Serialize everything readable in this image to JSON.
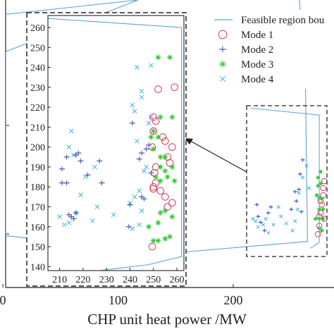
{
  "chart_data": {
    "type": "scatter",
    "xlabel": "CHP unit heat power /MW",
    "main_x_ticks": [
      "0",
      "100",
      "200"
    ],
    "main_x_tick_values": [
      0,
      100,
      200
    ],
    "main_xlim": [
      0,
      285
    ],
    "main_ylim": [
      0,
      100
    ],
    "feasible_region": {
      "name": "Feasible region bou",
      "outline": [
        [
          0,
          95
        ],
        [
          115,
          100
        ],
        [
          0,
          82
        ],
        [
          0,
          18
        ],
        [
          145,
          12
        ],
        [
          262,
          16
        ],
        [
          260,
          78
        ],
        [
          255,
          100
        ]
      ],
      "color": "#5ba3d6"
    },
    "legend": [
      {
        "label": "Feasible region bou",
        "marker": "line",
        "color": "#5ba3d6"
      },
      {
        "label": "Mode 1",
        "marker": "circle",
        "color": "#d94a6a"
      },
      {
        "label": "Mode 2",
        "marker": "dash",
        "color": "#3c4fb0"
      },
      {
        "label": "Mode 3",
        "marker": "asterisk",
        "color": "#33c233"
      },
      {
        "label": "Mode 4",
        "marker": "x",
        "color": "#45b3dc"
      }
    ],
    "inset": {
      "x_ticks": [
        "210",
        "220",
        "230",
        "240",
        "250",
        "260"
      ],
      "x_tick_values": [
        210,
        220,
        230,
        240,
        250,
        260
      ],
      "y_ticks": [
        "140",
        "150",
        "160",
        "170",
        "180",
        "190",
        "200",
        "210",
        "220",
        "230",
        "240",
        "250",
        "260"
      ],
      "y_tick_values": [
        140,
        150,
        160,
        170,
        180,
        190,
        200,
        210,
        220,
        230,
        240,
        250,
        260
      ],
      "xlim": [
        205,
        263
      ],
      "ylim": [
        138,
        266
      ],
      "boundary": [
        [
          205,
          264.5
        ],
        [
          262,
          260
        ],
        [
          262,
          145
        ],
        [
          248,
          141
        ],
        [
          227,
          138
        ]
      ],
      "series": [
        {
          "name": "Mode 1",
          "points": [
            [
              249.5,
              150
            ],
            [
              250,
              180
            ],
            [
              251,
              182
            ],
            [
              250.5,
              187
            ],
            [
              251,
              190
            ],
            [
              249.5,
              200
            ],
            [
              250,
              208
            ],
            [
              251,
              213
            ],
            [
              250,
              215
            ],
            [
              252,
              229
            ],
            [
              254,
              205
            ],
            [
              255,
              203
            ],
            [
              256,
              195
            ],
            [
              257,
              192
            ],
            [
              258,
              200
            ],
            [
              259,
              230
            ],
            [
              255,
              175
            ],
            [
              256,
              170
            ],
            [
              258,
              172
            ],
            [
              253,
              178
            ],
            [
              250,
              179
            ]
          ]
        },
        {
          "name": "Mode 2",
          "points": [
            [
              211,
              189
            ],
            [
              211,
              182
            ],
            [
              213,
              182
            ],
            [
              213,
              195
            ],
            [
              214,
              166
            ],
            [
              215,
              165
            ],
            [
              216,
              164
            ],
            [
              217,
              167
            ],
            [
              217,
              196
            ],
            [
              218,
              197
            ],
            [
              219,
              193
            ],
            [
              222,
              186
            ],
            [
              227,
              193
            ],
            [
              228,
              182
            ],
            [
              239.5,
              160
            ],
            [
              240,
              171
            ],
            [
              241,
              212
            ],
            [
              244,
              194
            ],
            [
              245,
              197
            ],
            [
              246,
              174
            ],
            [
              247,
              199
            ],
            [
              248,
              201
            ],
            [
              249,
              187
            ],
            [
              245,
              175
            ]
          ]
        },
        {
          "name": "Mode 3",
          "points": [
            [
              250,
              153
            ],
            [
              252,
              153
            ],
            [
              255,
              154
            ],
            [
              257,
              155
            ],
            [
              252,
              245
            ],
            [
              253,
              215
            ],
            [
              257,
              245
            ],
            [
              258,
              215
            ],
            [
              250,
              199
            ],
            [
              253,
              195
            ],
            [
              253,
              190
            ],
            [
              255,
              195
            ],
            [
              255,
              188
            ],
            [
              258,
              190
            ],
            [
              251,
              185
            ],
            [
              253,
              183
            ],
            [
              256,
              185
            ],
            [
              259,
              183
            ],
            [
              253,
              167
            ],
            [
              255,
              168
            ],
            [
              258,
              165
            ],
            [
              252,
              162
            ],
            [
              250,
              208
            ],
            [
              252,
              205
            ],
            [
              249,
              205
            ],
            [
              248,
              160
            ]
          ]
        },
        {
          "name": "Mode 4",
          "points": [
            [
              210,
              165
            ],
            [
              212,
              161
            ],
            [
              214,
              162
            ],
            [
              215,
              208
            ],
            [
              214,
              200
            ],
            [
              216,
              196
            ],
            [
              217,
              167
            ],
            [
              219,
              176
            ],
            [
              221,
              185
            ],
            [
              224,
              163
            ],
            [
              225,
              190
            ],
            [
              226,
              170
            ],
            [
              233,
              166
            ],
            [
              240,
              172
            ],
            [
              241,
              159
            ],
            [
              241,
              221
            ],
            [
              242,
              218
            ],
            [
              243,
              203
            ],
            [
              243,
              240
            ],
            [
              244,
              178
            ],
            [
              245,
              168
            ],
            [
              245,
              228
            ],
            [
              246,
              188
            ],
            [
              248,
              212
            ],
            [
              249,
              241
            ],
            [
              249,
              215
            ],
            [
              247,
              190
            ],
            [
              245,
              225
            ],
            [
              244,
              161
            ],
            [
              242,
              175
            ]
          ]
        }
      ]
    },
    "zoom_box_points": {
      "name": "cluster",
      "mode1": [
        [
          261,
          157
        ],
        [
          263,
          175
        ],
        [
          262,
          172
        ],
        [
          264,
          182
        ],
        [
          263,
          185
        ],
        [
          265,
          190
        ],
        [
          266,
          202
        ],
        [
          265,
          196
        ],
        [
          262,
          164
        ],
        [
          266,
          170
        ]
      ],
      "mode2": [
        [
          213,
          182
        ],
        [
          214,
          172
        ],
        [
          216,
          167
        ],
        [
          219,
          160
        ],
        [
          222,
          175
        ],
        [
          224,
          180
        ],
        [
          240,
          178
        ],
        [
          243,
          193
        ],
        [
          246,
          195
        ],
        [
          247,
          208
        ],
        [
          249,
          220
        ],
        [
          244,
          185
        ],
        [
          248,
          176
        ]
      ],
      "mode3": [
        [
          259,
          170
        ],
        [
          262,
          170
        ],
        [
          265,
          170
        ],
        [
          260,
          190
        ],
        [
          262,
          188
        ],
        [
          264,
          187
        ],
        [
          261,
          205
        ],
        [
          263,
          210
        ],
        [
          261,
          198
        ],
        [
          263,
          200
        ],
        [
          262,
          178
        ],
        [
          265,
          178
        ],
        [
          262,
          162
        ],
        [
          264,
          160
        ]
      ],
      "mode4": [
        [
          210,
          170
        ],
        [
          212,
          168
        ],
        [
          214,
          163
        ],
        [
          218,
          165
        ],
        [
          220,
          170
        ],
        [
          222,
          158
        ],
        [
          226,
          165
        ],
        [
          230,
          180
        ],
        [
          232,
          172
        ],
        [
          236,
          166
        ],
        [
          241,
          160
        ],
        [
          245,
          178
        ],
        [
          246,
          192
        ],
        [
          249,
          205
        ],
        [
          252,
          215
        ],
        [
          254,
          196
        ],
        [
          243,
          168
        ]
      ]
    }
  }
}
